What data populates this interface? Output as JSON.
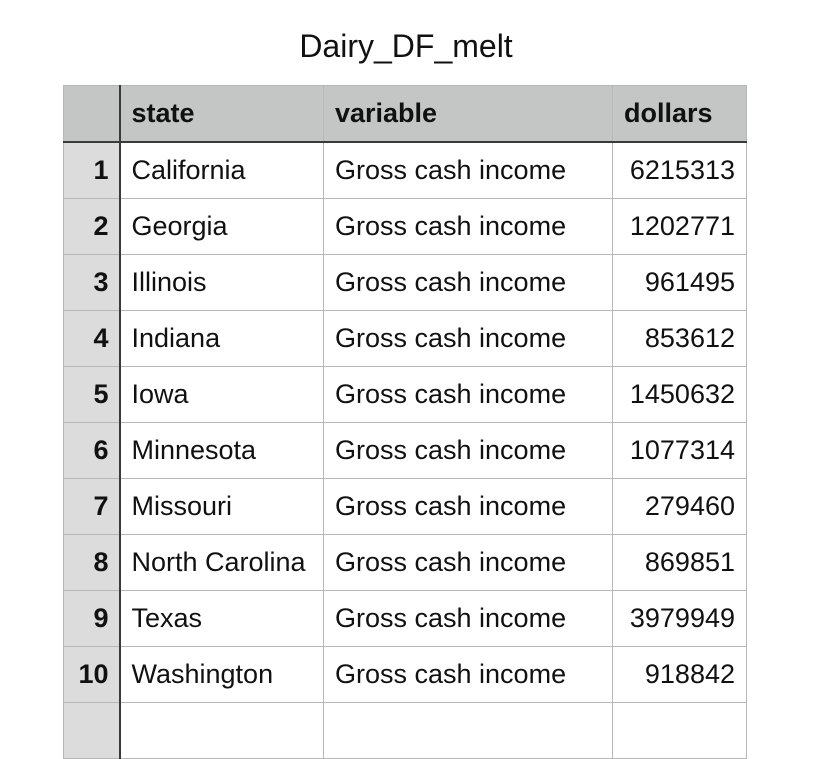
{
  "title": "Dairy_DF_melt",
  "columns": [
    "",
    "state",
    "variable",
    "dollars"
  ],
  "rows": [
    {
      "index": "1",
      "state": "California",
      "variable": "Gross cash income",
      "dollars": "6215313"
    },
    {
      "index": "2",
      "state": "Georgia",
      "variable": "Gross cash income",
      "dollars": "1202771"
    },
    {
      "index": "3",
      "state": "Illinois",
      "variable": "Gross cash income",
      "dollars": "961495"
    },
    {
      "index": "4",
      "state": "Indiana",
      "variable": "Gross cash income",
      "dollars": "853612"
    },
    {
      "index": "5",
      "state": "Iowa",
      "variable": "Gross cash income",
      "dollars": "1450632"
    },
    {
      "index": "6",
      "state": "Minnesota",
      "variable": "Gross cash income",
      "dollars": "1077314"
    },
    {
      "index": "7",
      "state": "Missouri",
      "variable": "Gross cash income",
      "dollars": "279460"
    },
    {
      "index": "8",
      "state": "North Carolina",
      "variable": "Gross cash income",
      "dollars": "869851"
    },
    {
      "index": "9",
      "state": "Texas",
      "variable": "Gross cash income",
      "dollars": "3979949"
    },
    {
      "index": "10",
      "state": "Washington",
      "variable": "Gross cash income",
      "dollars": "918842"
    },
    {
      "index": "",
      "state": "",
      "variable": "",
      "dollars": ""
    }
  ]
}
